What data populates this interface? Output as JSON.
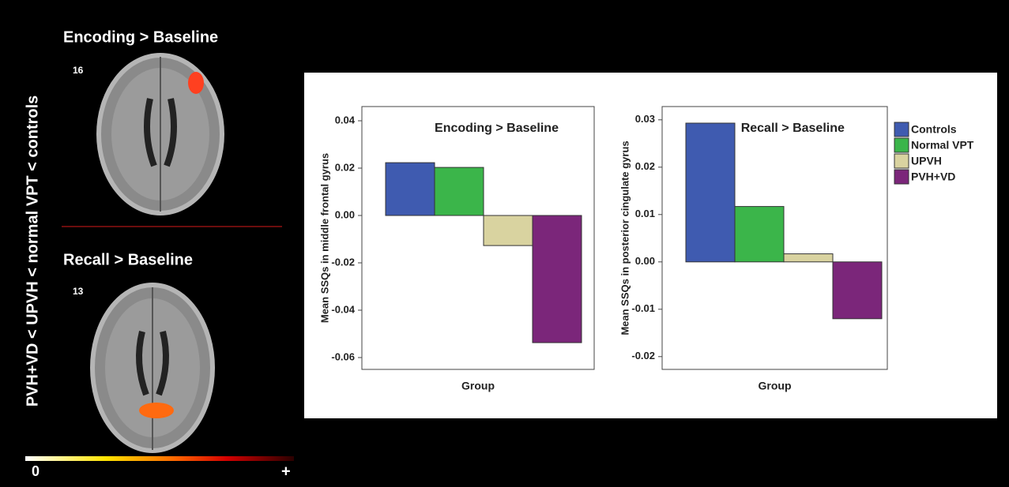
{
  "figure": {
    "side_label": "PVH+VD < UPVH < normal VPT < controls",
    "panels": [
      {
        "title": "Encoding  > Baseline",
        "slice": "16"
      },
      {
        "title": "Recall  > Baseline",
        "slice": "13"
      }
    ],
    "colorbar": {
      "min_label": "0",
      "max_label": "+"
    }
  },
  "chart_data": [
    {
      "type": "bar",
      "title": "Encoding > Baseline",
      "x_label": "Group",
      "y_label": "Mean SSQs in middle frontal gyrus",
      "ylim": [
        -0.065,
        0.046
      ],
      "yticks": [
        0.04,
        0.02,
        {
          "value": 0,
          "label": "0.00"
        },
        -0.02,
        -0.04,
        -0.06
      ],
      "series": [
        {
          "color": "#3f5bb0",
          "values": [
            0.0223
          ]
        },
        {
          "color": "#3bb54a",
          "values": [
            0.0203
          ]
        },
        {
          "color": "#d9d3a0",
          "values": [
            -0.0127
          ]
        },
        {
          "color": "#7b267a",
          "values": [
            -0.0537
          ]
        }
      ]
    },
    {
      "type": "bar",
      "title": "Recall > Baseline",
      "x_label": "Group",
      "y_label": "Mean SSQs in posterior cingulate gyrus",
      "ylim": [
        -0.0227,
        0.0328
      ],
      "yticks": [
        0.03,
        0.02,
        0.01,
        {
          "value": 0,
          "label": "0.00"
        },
        -0.01,
        -0.02
      ],
      "legend": "right",
      "series": [
        {
          "name": "Controls",
          "color": "#3f5bb0",
          "values": [
            0.0293
          ]
        },
        {
          "name": "Normal VPT",
          "color": "#3bb54a",
          "values": [
            0.0117
          ]
        },
        {
          "name": "UPVH",
          "color": "#d9d3a0",
          "values": [
            0.0017
          ]
        },
        {
          "name": "PVH+VD",
          "color": "#7b267a",
          "values": [
            -0.012
          ]
        }
      ]
    }
  ]
}
